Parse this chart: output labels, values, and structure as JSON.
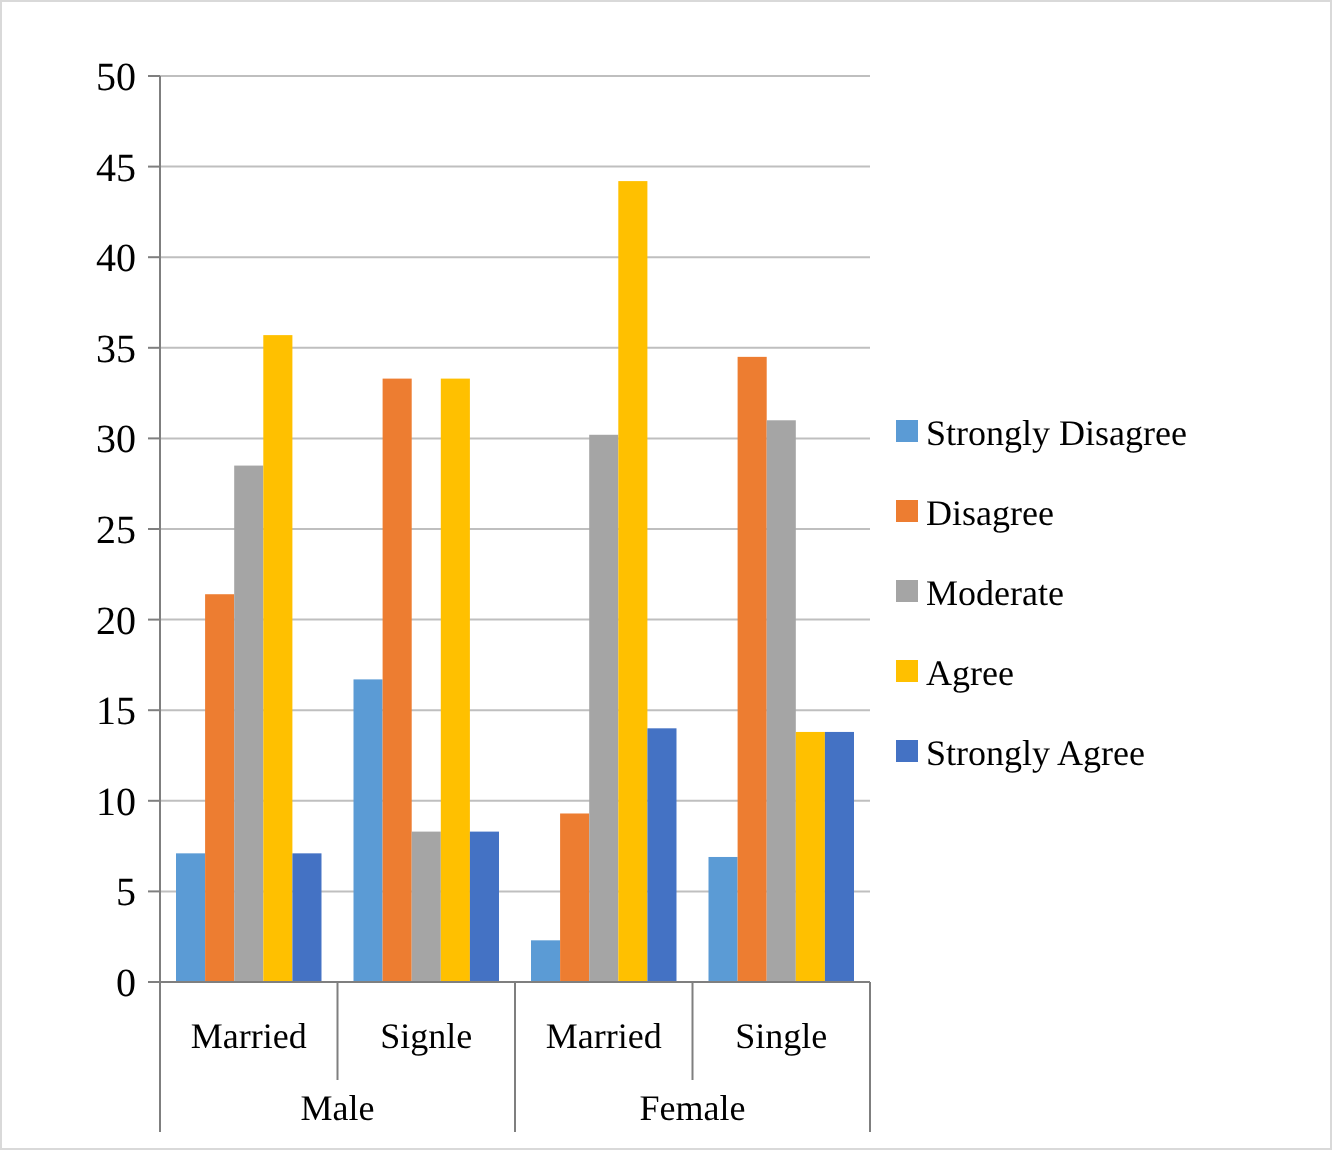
{
  "chart_data": {
    "type": "bar",
    "categories": [
      "Married",
      "Signle",
      "Married",
      "Single"
    ],
    "series": [
      {
        "name": "Strongly Disagree",
        "color": "#5b9bd5",
        "values": [
          7.1,
          16.7,
          2.3,
          6.9
        ]
      },
      {
        "name": "Disagree",
        "color": "#ed7d31",
        "values": [
          21.4,
          33.3,
          9.3,
          34.5
        ]
      },
      {
        "name": "Moderate",
        "color": "#a5a5a5",
        "values": [
          28.5,
          8.3,
          30.2,
          31.0
        ]
      },
      {
        "name": "Agree",
        "color": "#ffc000",
        "values": [
          35.7,
          33.3,
          44.2,
          13.8
        ]
      },
      {
        "name": "Strongly Agree",
        "color": "#4472c4",
        "values": [
          7.1,
          8.3,
          14.0,
          13.8
        ]
      }
    ],
    "ylim": [
      0,
      50
    ],
    "yticks": [
      0,
      5,
      10,
      15,
      20,
      25,
      30,
      35,
      40,
      45,
      50
    ],
    "grid": "y",
    "legend": "right",
    "annotations": [
      "Male",
      "Female"
    ]
  }
}
